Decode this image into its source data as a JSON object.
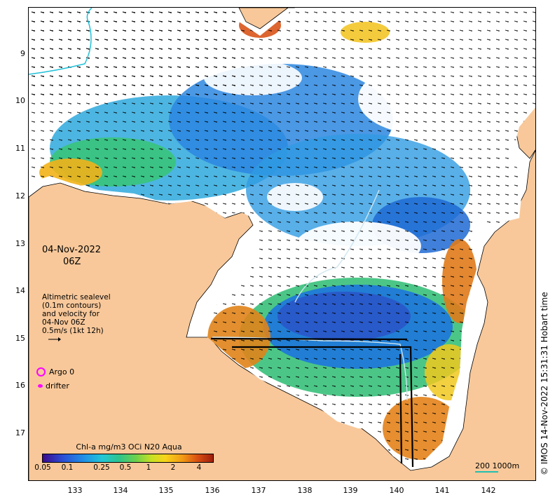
{
  "map": {
    "date": "04-Nov-2022",
    "time": "06Z",
    "altimetry_lines": [
      "Altimetric sealevel",
      "(0.1m contours)",
      "and velocity for",
      "04-Nov 06Z",
      "0.5m/s (1kt 12h)"
    ],
    "argo_label": "Argo 0",
    "drifter_label": "drifter",
    "colorbar_title": "Chl-a mg/m3 OCi N20 Aqua",
    "colorbar_ticks": [
      "0.05",
      "0.1",
      "0.25",
      "0.5",
      "1",
      "2",
      "4"
    ],
    "scale_label": "200  1000m",
    "credit": "© IMOS 14-Nov-2022 15:31:31 Hobart time",
    "lat_labels": [
      "9",
      "10",
      "11",
      "12",
      "13",
      "14",
      "15",
      "16",
      "17"
    ],
    "lon_labels": [
      "133",
      "134",
      "135",
      "136",
      "137",
      "138",
      "139",
      "140",
      "141",
      "142"
    ],
    "colors": {
      "land": "#f8c89a",
      "no_data": "#ffffff",
      "accent": "#ff00ff"
    }
  }
}
